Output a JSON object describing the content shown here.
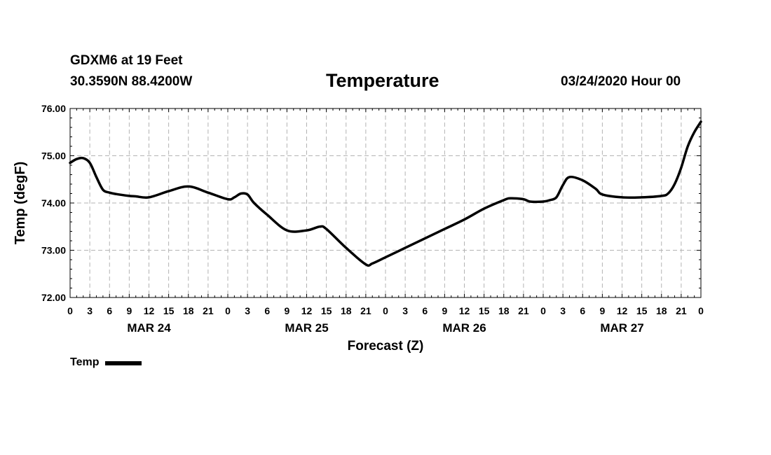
{
  "header": {
    "station": "GDXM6 at 19 Feet",
    "coords": "30.3590N 88.4200W",
    "title": "Temperature",
    "datetime": "03/24/2020 Hour 00"
  },
  "chart_data": {
    "type": "line",
    "title": "Temperature",
    "xlabel": "Forecast (Z)",
    "ylabel": "Temp (degF)",
    "ylim": [
      72.0,
      76.0
    ],
    "xlim": [
      0,
      96
    ],
    "y_ticks": [
      "72.00",
      "73.00",
      "74.00",
      "75.00",
      "76.00"
    ],
    "x_tick_labels": [
      "0",
      "3",
      "6",
      "9",
      "12",
      "15",
      "18",
      "21",
      "0",
      "3",
      "6",
      "9",
      "12",
      "15",
      "18",
      "21",
      "0",
      "3",
      "6",
      "9",
      "12",
      "15",
      "18",
      "21",
      "0",
      "3",
      "6",
      "9",
      "12",
      "15",
      "18",
      "21",
      "0"
    ],
    "day_labels": [
      {
        "label": "MAR 24",
        "hour": 12
      },
      {
        "label": "MAR 25",
        "hour": 36
      },
      {
        "label": "MAR 26",
        "hour": 60
      },
      {
        "label": "MAR 27",
        "hour": 84
      }
    ],
    "grid": true,
    "legend": "bottom-left",
    "series": [
      {
        "name": "Temp",
        "x": [
          0,
          1,
          2,
          3,
          4,
          5,
          6,
          7,
          9,
          10,
          12,
          15,
          18,
          21,
          24,
          25,
          26,
          27,
          28,
          30,
          33,
          36,
          38,
          39,
          42,
          45,
          46,
          48,
          51,
          54,
          57,
          60,
          63,
          66,
          67,
          69,
          70,
          72,
          73,
          74,
          75,
          76,
          78,
          80,
          81,
          84,
          87,
          90,
          91,
          92,
          93,
          94,
          95,
          96
        ],
        "y": [
          74.85,
          74.93,
          74.95,
          74.85,
          74.55,
          74.28,
          74.22,
          74.19,
          74.15,
          74.14,
          74.12,
          74.25,
          74.35,
          74.22,
          74.08,
          74.12,
          74.2,
          74.18,
          74.0,
          73.75,
          73.42,
          73.42,
          73.5,
          73.45,
          73.05,
          72.7,
          72.72,
          72.85,
          73.05,
          73.25,
          73.45,
          73.65,
          73.88,
          74.06,
          74.1,
          74.08,
          74.03,
          74.03,
          74.06,
          74.12,
          74.38,
          74.55,
          74.48,
          74.3,
          74.18,
          74.12,
          74.12,
          74.15,
          74.2,
          74.4,
          74.75,
          75.2,
          75.5,
          75.72
        ]
      }
    ]
  },
  "legend": {
    "label": "Temp"
  }
}
